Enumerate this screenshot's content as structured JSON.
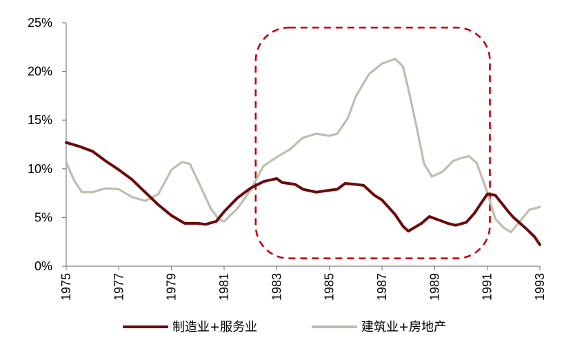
{
  "chart_data": {
    "type": "line",
    "title": "",
    "xlabel": "",
    "ylabel": "",
    "xlim": [
      1975,
      1993
    ],
    "ylim": [
      0,
      25
    ],
    "y_ticks": [
      "0%",
      "5%",
      "10%",
      "15%",
      "20%",
      "25%"
    ],
    "x_ticks": [
      "1975",
      "1977",
      "1979",
      "1981",
      "1983",
      "1985",
      "1987",
      "1989",
      "1991",
      "1993"
    ],
    "grid": false,
    "legend_position": "bottom",
    "highlight_box": {
      "x_range": [
        1982.2,
        1991.1
      ],
      "y_range": [
        0.8,
        24.5
      ],
      "style": "dashed rounded rectangle",
      "color": "#C00000"
    },
    "series": [
      {
        "name": "制造业+服务业",
        "color": "#6B0A0A",
        "points": [
          [
            1975.0,
            12.7
          ],
          [
            1975.5,
            12.3
          ],
          [
            1976.0,
            11.8
          ],
          [
            1976.5,
            10.8
          ],
          [
            1977.0,
            9.9
          ],
          [
            1977.5,
            8.9
          ],
          [
            1978.0,
            7.6
          ],
          [
            1978.5,
            6.3
          ],
          [
            1979.0,
            5.2
          ],
          [
            1979.5,
            4.4
          ],
          [
            1980.0,
            4.4
          ],
          [
            1980.3,
            4.3
          ],
          [
            1980.7,
            4.6
          ],
          [
            1981.0,
            5.6
          ],
          [
            1981.5,
            7.0
          ],
          [
            1982.0,
            8.0
          ],
          [
            1982.5,
            8.7
          ],
          [
            1983.0,
            9.0
          ],
          [
            1983.2,
            8.6
          ],
          [
            1983.7,
            8.4
          ],
          [
            1984.0,
            7.9
          ],
          [
            1984.5,
            7.6
          ],
          [
            1985.0,
            7.8
          ],
          [
            1985.3,
            7.9
          ],
          [
            1985.6,
            8.5
          ],
          [
            1986.0,
            8.4
          ],
          [
            1986.3,
            8.3
          ],
          [
            1986.7,
            7.3
          ],
          [
            1987.0,
            6.8
          ],
          [
            1987.5,
            5.3
          ],
          [
            1987.8,
            4.1
          ],
          [
            1988.0,
            3.6
          ],
          [
            1988.5,
            4.4
          ],
          [
            1988.8,
            5.1
          ],
          [
            1989.1,
            4.8
          ],
          [
            1989.5,
            4.4
          ],
          [
            1989.8,
            4.2
          ],
          [
            1990.2,
            4.5
          ],
          [
            1990.5,
            5.4
          ],
          [
            1990.8,
            6.6
          ],
          [
            1991.0,
            7.4
          ],
          [
            1991.3,
            7.3
          ],
          [
            1991.8,
            5.6
          ],
          [
            1992.0,
            5.0
          ],
          [
            1992.5,
            3.8
          ],
          [
            1992.8,
            3.0
          ],
          [
            1993.0,
            2.2
          ]
        ]
      },
      {
        "name": "建筑业+房地产",
        "color": "#BEBEAF",
        "points": [
          [
            1975.0,
            10.7
          ],
          [
            1975.3,
            8.8
          ],
          [
            1975.6,
            7.6
          ],
          [
            1976.0,
            7.6
          ],
          [
            1976.5,
            8.0
          ],
          [
            1977.0,
            7.9
          ],
          [
            1977.5,
            7.1
          ],
          [
            1978.0,
            6.7
          ],
          [
            1978.5,
            7.4
          ],
          [
            1979.0,
            9.9
          ],
          [
            1979.4,
            10.7
          ],
          [
            1979.7,
            10.5
          ],
          [
            1980.0,
            8.8
          ],
          [
            1980.5,
            5.9
          ],
          [
            1980.8,
            4.8
          ],
          [
            1981.0,
            4.6
          ],
          [
            1981.5,
            5.9
          ],
          [
            1982.0,
            7.8
          ],
          [
            1982.5,
            10.3
          ],
          [
            1983.0,
            11.2
          ],
          [
            1983.5,
            12.0
          ],
          [
            1984.0,
            13.2
          ],
          [
            1984.5,
            13.6
          ],
          [
            1985.0,
            13.4
          ],
          [
            1985.3,
            13.6
          ],
          [
            1985.7,
            15.2
          ],
          [
            1986.0,
            17.4
          ],
          [
            1986.5,
            19.7
          ],
          [
            1987.0,
            20.8
          ],
          [
            1987.5,
            21.3
          ],
          [
            1987.8,
            20.5
          ],
          [
            1988.0,
            18.2
          ],
          [
            1988.3,
            14.5
          ],
          [
            1988.6,
            10.5
          ],
          [
            1988.9,
            9.2
          ],
          [
            1989.3,
            9.7
          ],
          [
            1989.7,
            10.8
          ],
          [
            1990.0,
            11.1
          ],
          [
            1990.3,
            11.3
          ],
          [
            1990.6,
            10.6
          ],
          [
            1991.0,
            7.6
          ],
          [
            1991.3,
            4.9
          ],
          [
            1991.6,
            4.0
          ],
          [
            1991.9,
            3.5
          ],
          [
            1992.3,
            4.8
          ],
          [
            1992.6,
            5.8
          ],
          [
            1992.9,
            6.0
          ],
          [
            1993.0,
            6.1
          ]
        ]
      }
    ]
  }
}
